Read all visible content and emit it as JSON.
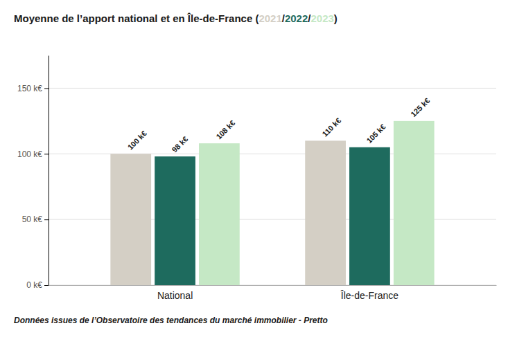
{
  "chart_data": {
    "type": "bar",
    "title": "Moyenne de l’apport national et en Île-de-France (2021/2022/2023)",
    "categories": [
      "National",
      "Île-de-France"
    ],
    "series": [
      {
        "name": "2021",
        "color": "#d4cfc5",
        "values": [
          100,
          110
        ],
        "value_labels": [
          "100 k€",
          "110 k€"
        ]
      },
      {
        "name": "2022",
        "color": "#1e6b5e",
        "values": [
          98,
          105
        ],
        "value_labels": [
          "98 k€",
          "105 k€"
        ]
      },
      {
        "name": "2023",
        "color": "#c5e8c5",
        "values": [
          108,
          125
        ],
        "value_labels": [
          "108 k€",
          "125 k€"
        ]
      }
    ],
    "ylim": [
      0,
      175
    ],
    "yticks": [
      {
        "value": 0,
        "label": "0 k€"
      },
      {
        "value": 50,
        "label": "50 k€"
      },
      {
        "value": 100,
        "label": "100 k€"
      },
      {
        "value": 150,
        "label": "150 k€"
      }
    ],
    "grid": true,
    "data_labels": true,
    "annotations": [
      "Données issues de l’Observatoire des tendances du marché immobilier - Pretto"
    ]
  }
}
